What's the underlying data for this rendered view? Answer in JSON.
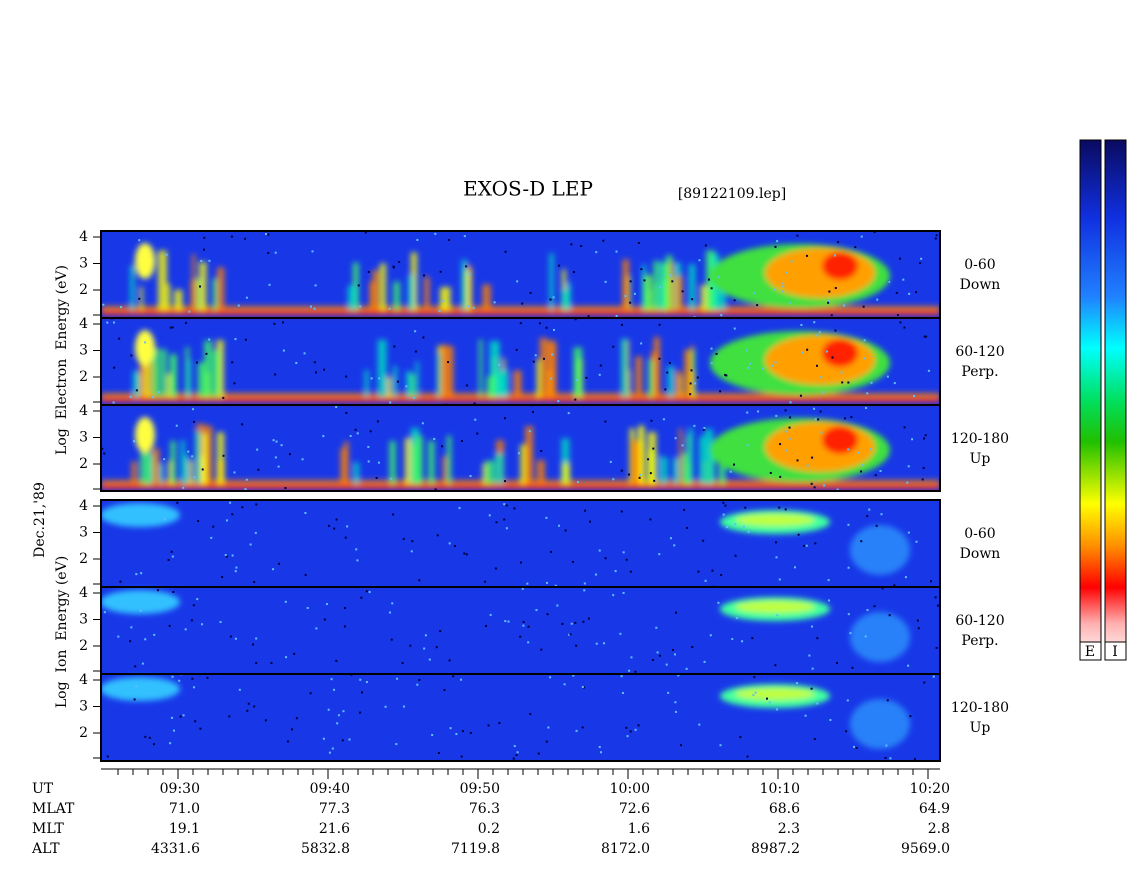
{
  "title": "EXOS-D LEP",
  "file": "[89122109.lep]",
  "date": "Dec.21,'89",
  "electron_axis": "Log  Electron  Energy (eV)",
  "ion_axis": "Log  Ion  Energy (eV)",
  "energy_ticks": [
    "4",
    "3",
    "2"
  ],
  "electron_panels": [
    {
      "range": "0-60",
      "direction": "Down"
    },
    {
      "range": "60-120",
      "direction": "Perp."
    },
    {
      "range": "120-180",
      "direction": "Up"
    }
  ],
  "ion_panels": [
    {
      "range": "0-60",
      "direction": "Down"
    },
    {
      "range": "60-120",
      "direction": "Perp."
    },
    {
      "range": "120-180",
      "direction": "Up"
    }
  ],
  "time_axis": {
    "label": "UT",
    "ticks": [
      "09:30",
      "09:40",
      "09:50",
      "10:00",
      "10:10",
      "10:20"
    ]
  },
  "orbit_rows": [
    {
      "label": "MLAT",
      "values": [
        "71.0",
        "77.3",
        "76.3",
        "72.6",
        "68.6",
        "64.9"
      ]
    },
    {
      "label": "MLT",
      "values": [
        "19.1",
        "21.6",
        "0.2",
        "1.6",
        "2.3",
        "2.8"
      ]
    },
    {
      "label": "ALT",
      "values": [
        "4331.6",
        "5832.8",
        "7119.8",
        "8172.0",
        "8987.2",
        "9569.0"
      ]
    }
  ],
  "colorbars": [
    "E",
    "I"
  ]
}
